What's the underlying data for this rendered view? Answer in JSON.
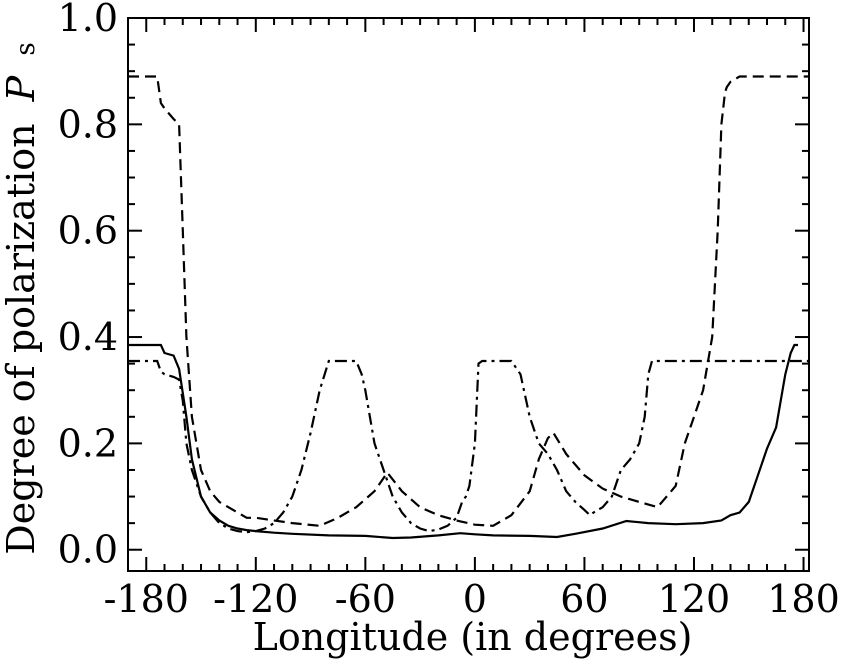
{
  "chart_data": {
    "type": "line",
    "xlabel": "Longitude (in degrees)",
    "ylabel": "Degree of polarization",
    "ylabel_symbol": "P",
    "ylabel_subscript": "s",
    "xlim": [
      -190,
      183
    ],
    "ylim": [
      -0.04,
      1.0
    ],
    "xticks": [
      -180,
      -120,
      -60,
      0,
      60,
      120,
      180
    ],
    "yticks": [
      0.0,
      0.2,
      0.4,
      0.6,
      0.8,
      1.0
    ],
    "xtick_labels": [
      "-180",
      "-120",
      "-60",
      "0",
      "60",
      "120",
      "180"
    ],
    "ytick_labels": [
      "0.0",
      "0.2",
      "0.4",
      "0.6",
      "0.8",
      "1.0"
    ],
    "grid": false,
    "series": [
      {
        "style": "solid",
        "x": [
          -190,
          -172,
          -170,
          -165,
          -162,
          -158,
          -155,
          -150,
          -145,
          -140,
          -135,
          -130,
          -125,
          -120,
          -110,
          -100,
          -80,
          -60,
          -45,
          -35,
          -20,
          -8,
          0,
          10,
          30,
          45,
          55,
          70,
          83,
          95,
          110,
          125,
          135,
          140,
          145,
          150,
          155,
          160,
          165,
          170,
          173,
          175,
          177
        ],
        "y": [
          0.385,
          0.385,
          0.37,
          0.365,
          0.34,
          0.25,
          0.17,
          0.1,
          0.07,
          0.055,
          0.045,
          0.04,
          0.037,
          0.035,
          0.032,
          0.03,
          0.027,
          0.026,
          0.022,
          0.023,
          0.027,
          0.031,
          0.029,
          0.027,
          0.026,
          0.024,
          0.03,
          0.04,
          0.054,
          0.05,
          0.048,
          0.05,
          0.055,
          0.065,
          0.07,
          0.09,
          0.14,
          0.19,
          0.23,
          0.33,
          0.37,
          0.385,
          0.385
        ]
      },
      {
        "style": "dashed",
        "x": [
          -190,
          -174,
          -172,
          -170,
          -165,
          -162,
          -160,
          -158,
          -155,
          -150,
          -145,
          -140,
          -135,
          -130,
          -125,
          -120,
          -100,
          -85,
          -75,
          -65,
          -55,
          -48,
          -40,
          -30,
          -20,
          -10,
          0,
          10,
          20,
          30,
          35,
          40,
          43,
          50,
          60,
          70,
          80,
          90,
          100,
          105,
          110,
          115,
          120,
          125,
          130,
          133,
          135,
          137,
          138,
          140,
          145,
          183
        ],
        "y": [
          0.89,
          0.89,
          0.84,
          0.83,
          0.81,
          0.8,
          0.6,
          0.4,
          0.25,
          0.15,
          0.11,
          0.09,
          0.08,
          0.07,
          0.06,
          0.06,
          0.05,
          0.045,
          0.06,
          0.08,
          0.11,
          0.145,
          0.11,
          0.08,
          0.065,
          0.055,
          0.047,
          0.045,
          0.065,
          0.11,
          0.17,
          0.21,
          0.22,
          0.18,
          0.14,
          0.115,
          0.1,
          0.09,
          0.08,
          0.1,
          0.12,
          0.2,
          0.25,
          0.3,
          0.4,
          0.6,
          0.8,
          0.86,
          0.87,
          0.88,
          0.89,
          0.89
        ]
      },
      {
        "style": "dashdot",
        "x": [
          -190,
          -174,
          -172,
          -170,
          -165,
          -162,
          -160,
          -158,
          -155,
          -150,
          -145,
          -140,
          -135,
          -130,
          -125,
          -120,
          -115,
          -110,
          -105,
          -100,
          -95,
          -90,
          -85,
          -80,
          -70,
          -65,
          -62,
          -60,
          -55,
          -50,
          -45,
          -40,
          -35,
          -30,
          -25,
          -20,
          -15,
          -10,
          -7,
          -5,
          -3,
          0,
          2,
          4,
          5,
          10,
          20,
          25,
          30,
          35,
          40,
          45,
          50,
          55,
          60,
          63,
          65,
          70,
          75,
          80,
          85,
          90,
          93,
          95,
          97,
          100,
          183
        ],
        "y": [
          0.355,
          0.355,
          0.335,
          0.33,
          0.325,
          0.32,
          0.28,
          0.2,
          0.15,
          0.1,
          0.07,
          0.05,
          0.04,
          0.035,
          0.033,
          0.035,
          0.04,
          0.05,
          0.07,
          0.1,
          0.15,
          0.22,
          0.3,
          0.355,
          0.355,
          0.355,
          0.33,
          0.3,
          0.2,
          0.15,
          0.1,
          0.07,
          0.05,
          0.04,
          0.035,
          0.038,
          0.045,
          0.06,
          0.09,
          0.1,
          0.12,
          0.2,
          0.35,
          0.355,
          0.355,
          0.355,
          0.355,
          0.33,
          0.25,
          0.2,
          0.18,
          0.15,
          0.11,
          0.09,
          0.075,
          0.065,
          0.07,
          0.08,
          0.1,
          0.15,
          0.17,
          0.2,
          0.25,
          0.33,
          0.355,
          0.355,
          0.355
        ]
      }
    ]
  }
}
